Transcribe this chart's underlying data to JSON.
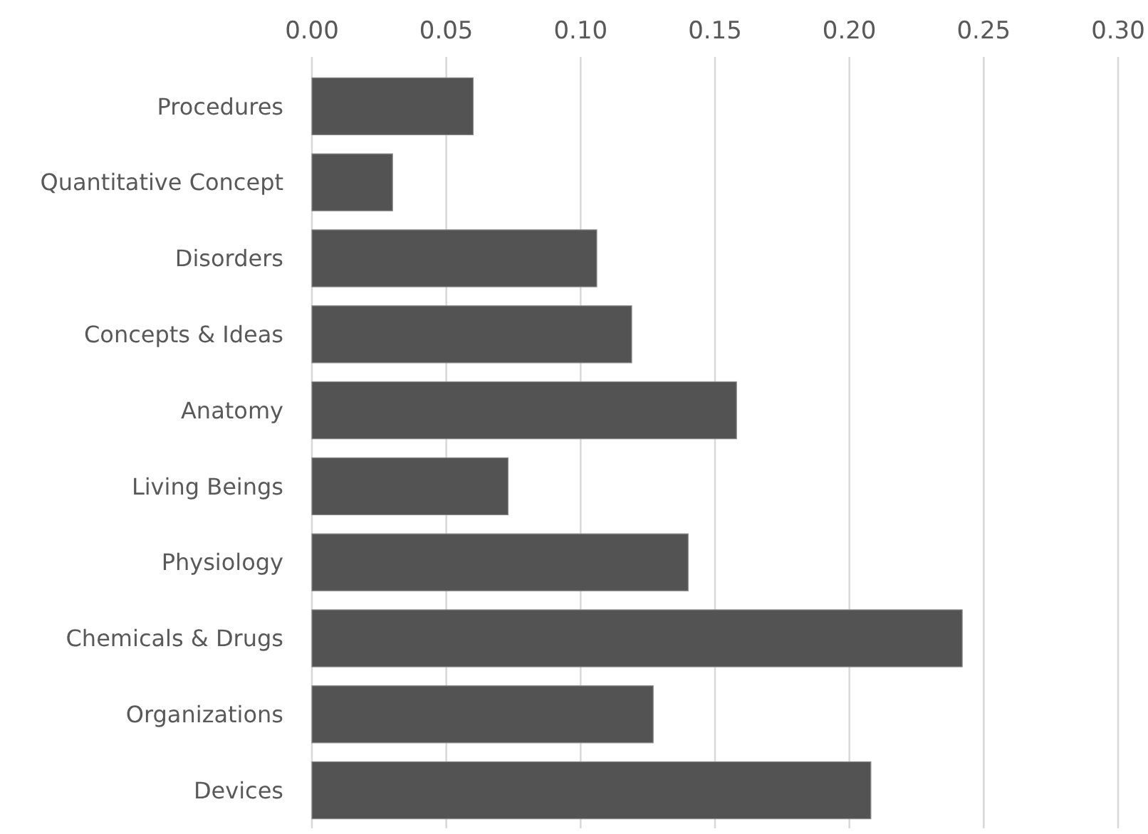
{
  "chart_data": {
    "type": "bar",
    "orientation": "horizontal",
    "categories": [
      "Procedures",
      "Quantitative Concept",
      "Disorders",
      "Concepts & Ideas",
      "Anatomy",
      "Living Beings",
      "Physiology",
      "Chemicals & Drugs",
      "Organizations",
      "Devices"
    ],
    "values": [
      0.06,
      0.03,
      0.106,
      0.119,
      0.158,
      0.073,
      0.14,
      0.242,
      0.127,
      0.208
    ],
    "color": "#535353",
    "xlim": [
      0,
      0.3
    ],
    "xticks": [
      {
        "value": 0,
        "label": "0.00"
      },
      {
        "value": 0.05,
        "label": "0.05"
      },
      {
        "value": 0.1,
        "label": "0.10"
      },
      {
        "value": 0.15,
        "label": "0.15"
      },
      {
        "value": 0.2,
        "label": "0.20"
      },
      {
        "value": 0.25,
        "label": "0.25"
      },
      {
        "value": 0.3,
        "label": "0.30"
      }
    ],
    "grid": "x"
  }
}
